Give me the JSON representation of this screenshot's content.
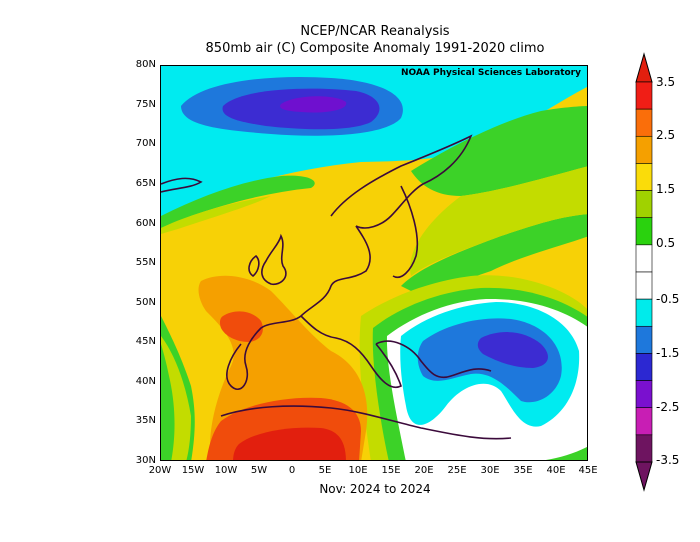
{
  "header": {
    "source": "NCEP/NCAR Reanalysis",
    "title": "850mb air (C) Composite Anomaly 1991-2020 climo"
  },
  "map": {
    "credit": "NOAA Physical Sciences Laboratory",
    "region": "Europe / North Africa"
  },
  "axes": {
    "lat_labels": [
      "80N",
      "75N",
      "70N",
      "65N",
      "60N",
      "55N",
      "50N",
      "45N",
      "40N",
      "35N",
      "30N"
    ],
    "lon_labels": [
      "20W",
      "15W",
      "10W",
      "5W",
      "0",
      "5E",
      "10E",
      "15E",
      "20E",
      "25E",
      "30E",
      "35E",
      "40E",
      "45E"
    ]
  },
  "footer": {
    "period": "Nov: 2024 to 2024"
  },
  "colorbar": {
    "labels": [
      "3.5",
      "2.5",
      "1.5",
      "0.5",
      "-0.5",
      "-1.5",
      "-2.5",
      "-3.5"
    ],
    "colors": [
      "#f01e16",
      "#fa6e0a",
      "#f5a000",
      "#fadc0a",
      "#a0d200",
      "#2ad20e",
      "#ffffff",
      "#ffffff",
      "#00ebeb",
      "#1e78dc",
      "#2c28d2",
      "#7a10cf",
      "#c81eb4",
      "#6e1460"
    ]
  },
  "legend_colors": {
    "dark_red": "#e21f0e",
    "red": "#f04c0c",
    "orange": "#f5a000",
    "yellow": "#f7d106",
    "yellow_green": "#c3dc00",
    "green": "#3cd228",
    "cyan": "#00ebf0",
    "blue": "#1e78dc",
    "indigo": "#3c2cd2",
    "purple": "#6f10cf"
  }
}
